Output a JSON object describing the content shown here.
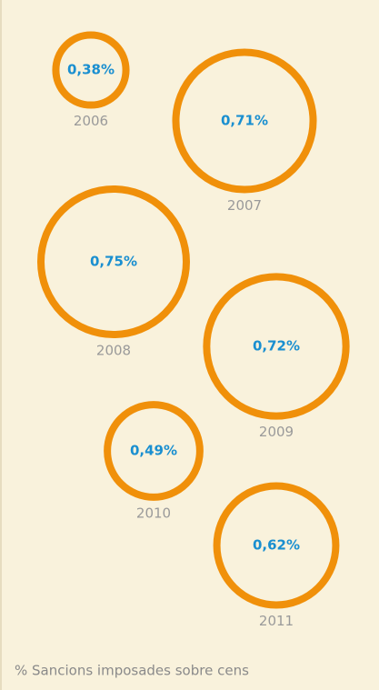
{
  "chart_data": {
    "type": "bubble",
    "categories": [
      "2006",
      "2007",
      "2008",
      "2009",
      "2010",
      "2011"
    ],
    "values": [
      0.38,
      0.71,
      0.75,
      0.72,
      0.49,
      0.62
    ],
    "value_labels": [
      "0,38%",
      "0,71%",
      "0,75%",
      "0,72%",
      "0,49%",
      "0,62%"
    ],
    "color": "#f0900a",
    "label_color": "#1a8fd0",
    "note": "% Sancions imposades sobre cens"
  }
}
